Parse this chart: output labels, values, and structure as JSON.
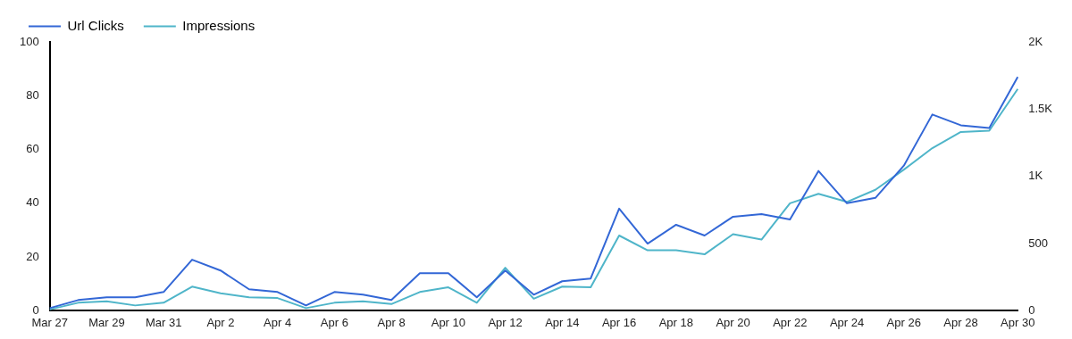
{
  "chart_data": {
    "type": "line",
    "categories": [
      "Mar 27",
      null,
      "Mar 29",
      null,
      "Mar 31",
      null,
      "Apr 2",
      null,
      "Apr 4",
      null,
      "Apr 6",
      null,
      "Apr 8",
      null,
      "Apr 10",
      null,
      "Apr 12",
      null,
      "Apr 14",
      null,
      "Apr 16",
      null,
      "Apr 18",
      null,
      "Apr 20",
      null,
      "Apr 22",
      null,
      "Apr 24",
      null,
      "Apr 26",
      null,
      "Apr 28",
      null,
      "Apr 30"
    ],
    "series": [
      {
        "name": "Url Clicks",
        "color": "#3367d6",
        "values": [
          1,
          4,
          5,
          5,
          7,
          19,
          15,
          8,
          7,
          2,
          7,
          6,
          4,
          14,
          14,
          5,
          15,
          6,
          11,
          12,
          38,
          25,
          32,
          28,
          35,
          36,
          34,
          52,
          40,
          42,
          54,
          73,
          69,
          68,
          87
        ]
      },
      {
        "name": "Impressions",
        "color": "#4fb5c9",
        "axis": "y2",
        "values": [
          10,
          60,
          70,
          40,
          60,
          180,
          130,
          100,
          95,
          20,
          60,
          70,
          50,
          140,
          175,
          60,
          320,
          90,
          180,
          175,
          560,
          450,
          450,
          420,
          570,
          530,
          800,
          870,
          810,
          900,
          1050,
          1210,
          1330,
          1340,
          1650
        ]
      }
    ],
    "ylim": [
      0,
      100
    ],
    "yticks": [
      0,
      20,
      40,
      60,
      80,
      100
    ],
    "y2lim": [
      0,
      2000
    ],
    "y2ticks": [
      {
        "value": 0,
        "label": "0"
      },
      {
        "value": 500,
        "label": "500"
      },
      {
        "value": 1000,
        "label": "1K"
      },
      {
        "value": 1500,
        "label": "1.5K"
      },
      {
        "value": 2000,
        "label": "2K"
      }
    ],
    "grid": false,
    "legend": "top left",
    "marker": "none",
    "line_style": "solid"
  }
}
